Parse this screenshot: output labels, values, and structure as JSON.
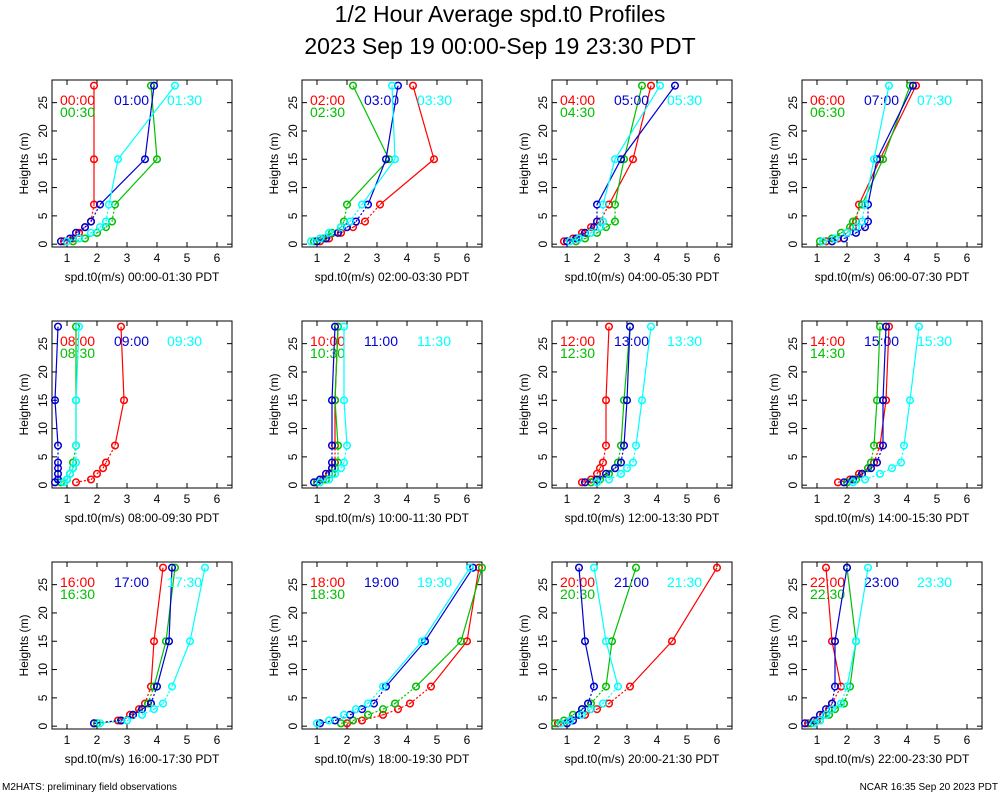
{
  "title_line1": "1/2 Hour Average spd.t0 Profiles",
  "title_line2": "2023 Sep 19 00:00-Sep 19 23:30 PDT",
  "footer_left": "M2HATS: preliminary field observations",
  "footer_right": "NCAR 16:35 Sep 20 2023 PDT",
  "colors": {
    "first": "#ff0000",
    "second": "#00c000",
    "third": "#0000d0",
    "fourth": "#00ffff"
  },
  "chart_data": [
    {
      "type": "line",
      "ylabel": "Heights (m)",
      "xlabel": "spd.t0(m/s) 00:00-01:30 PDT",
      "xlim": [
        0.5,
        6.5
      ],
      "ylim": [
        -0.5,
        29
      ],
      "xticks": [
        1,
        2,
        3,
        4,
        5,
        6
      ],
      "yticks": [
        0,
        5,
        10,
        15,
        20,
        25
      ],
      "heights": [
        0.5,
        1,
        2,
        3,
        4,
        7,
        15,
        28
      ],
      "series": [
        {
          "name": "00:00",
          "values": [
            0.9,
            1.2,
            1.4,
            1.6,
            1.8,
            1.9,
            1.9,
            1.9
          ]
        },
        {
          "name": "00:30",
          "values": [
            1.2,
            1.6,
            2.0,
            2.3,
            2.5,
            2.6,
            4.0,
            3.8
          ]
        },
        {
          "name": "01:00",
          "values": [
            0.8,
            1.1,
            1.3,
            1.6,
            1.8,
            2.1,
            3.6,
            3.9
          ]
        },
        {
          "name": "01:30",
          "values": [
            1.0,
            1.4,
            1.8,
            2.1,
            2.3,
            2.4,
            2.7,
            4.6
          ]
        }
      ]
    },
    {
      "type": "line",
      "ylabel": "Heights (m)",
      "xlabel": "spd.t0(m/s) 02:00-03:30 PDT",
      "xlim": [
        0.5,
        6.5
      ],
      "ylim": [
        -0.5,
        29
      ],
      "xticks": [
        1,
        2,
        3,
        4,
        5,
        6
      ],
      "yticks": [
        0,
        5,
        10,
        15,
        20,
        25
      ],
      "heights": [
        0.5,
        1,
        2,
        3,
        4,
        7,
        15,
        28
      ],
      "series": [
        {
          "name": "02:00",
          "values": [
            1.1,
            1.4,
            1.8,
            2.2,
            2.6,
            3.1,
            4.9,
            4.2
          ]
        },
        {
          "name": "02:30",
          "values": [
            0.9,
            1.2,
            1.5,
            1.8,
            1.9,
            2.0,
            3.4,
            2.2
          ]
        },
        {
          "name": "03:00",
          "values": [
            1.0,
            1.3,
            1.7,
            2.0,
            2.3,
            2.7,
            3.3,
            3.7
          ]
        },
        {
          "name": "03:30",
          "values": [
            0.8,
            1.1,
            1.4,
            1.8,
            2.1,
            2.5,
            3.6,
            3.5
          ]
        }
      ]
    },
    {
      "type": "line",
      "ylabel": "Heights (m)",
      "xlabel": "spd.t0(m/s) 04:00-05:30 PDT",
      "xlim": [
        0.5,
        6.5
      ],
      "ylim": [
        -0.5,
        29
      ],
      "xticks": [
        1,
        2,
        3,
        4,
        5,
        6
      ],
      "yticks": [
        0,
        5,
        10,
        15,
        20,
        25
      ],
      "heights": [
        0.5,
        1,
        2,
        3,
        4,
        7,
        15,
        28
      ],
      "series": [
        {
          "name": "04:00",
          "values": [
            0.9,
            1.2,
            1.5,
            1.8,
            2.1,
            2.4,
            3.2,
            3.8
          ]
        },
        {
          "name": "04:30",
          "values": [
            1.3,
            1.6,
            2.0,
            2.3,
            2.6,
            2.6,
            2.9,
            3.5
          ]
        },
        {
          "name": "05:00",
          "values": [
            1.0,
            1.3,
            1.6,
            1.9,
            2.0,
            2.0,
            2.8,
            4.6
          ]
        },
        {
          "name": "05:30",
          "values": [
            1.1,
            1.4,
            1.8,
            2.1,
            2.2,
            2.2,
            2.6,
            4.1
          ]
        }
      ]
    },
    {
      "type": "line",
      "ylabel": "Heights (m)",
      "xlabel": "spd.t0(m/s) 06:00-07:30 PDT",
      "xlim": [
        0.5,
        6.5
      ],
      "ylim": [
        -0.5,
        29
      ],
      "xticks": [
        1,
        2,
        3,
        4,
        5,
        6
      ],
      "yticks": [
        0,
        5,
        10,
        15,
        20,
        25
      ],
      "heights": [
        0.5,
        1,
        2,
        3,
        4,
        7,
        15,
        28
      ],
      "series": [
        {
          "name": "06:00",
          "values": [
            1.3,
            1.7,
            2.0,
            2.2,
            2.3,
            2.4,
            3.1,
            4.3
          ]
        },
        {
          "name": "06:30",
          "values": [
            1.1,
            1.5,
            1.8,
            2.1,
            2.2,
            2.5,
            3.2,
            4.1
          ]
        },
        {
          "name": "07:00",
          "values": [
            1.5,
            1.9,
            2.3,
            2.6,
            2.7,
            2.7,
            3.0,
            4.2
          ]
        },
        {
          "name": "07:30",
          "values": [
            1.2,
            1.6,
            2.0,
            2.3,
            2.5,
            2.6,
            2.9,
            3.4
          ]
        }
      ]
    },
    {
      "type": "line",
      "ylabel": "Heights (m)",
      "xlabel": "spd.t0(m/s) 08:00-09:30 PDT",
      "xlim": [
        0.5,
        6.5
      ],
      "ylim": [
        -0.5,
        29
      ],
      "xticks": [
        1,
        2,
        3,
        4,
        5,
        6
      ],
      "yticks": [
        0,
        5,
        10,
        15,
        20,
        25
      ],
      "heights": [
        0.5,
        1,
        2,
        3,
        4,
        7,
        15,
        28
      ],
      "series": [
        {
          "name": "08:00",
          "values": [
            1.3,
            1.8,
            2.0,
            2.2,
            2.3,
            2.6,
            2.9,
            2.8
          ]
        },
        {
          "name": "08:30",
          "values": [
            0.8,
            1.0,
            1.1,
            1.2,
            1.2,
            1.3,
            1.3,
            1.3
          ]
        },
        {
          "name": "09:00",
          "values": [
            0.6,
            0.7,
            0.7,
            0.7,
            0.7,
            0.7,
            0.6,
            0.7
          ]
        },
        {
          "name": "09:30",
          "values": [
            0.9,
            1.0,
            1.1,
            1.2,
            1.3,
            1.3,
            1.3,
            1.4
          ]
        }
      ]
    },
    {
      "type": "line",
      "ylabel": "Heights (m)",
      "xlabel": "spd.t0(m/s) 10:00-11:30 PDT",
      "xlim": [
        0.5,
        6.5
      ],
      "ylim": [
        -0.5,
        29
      ],
      "xticks": [
        1,
        2,
        3,
        4,
        5,
        6
      ],
      "yticks": [
        0,
        5,
        10,
        15,
        20,
        25
      ],
      "heights": [
        0.5,
        1,
        2,
        3,
        4,
        7,
        15,
        28
      ],
      "series": [
        {
          "name": "10:00",
          "values": [
            1.0,
            1.2,
            1.4,
            1.5,
            1.6,
            1.6,
            1.6,
            1.7
          ]
        },
        {
          "name": "10:30",
          "values": [
            1.0,
            1.3,
            1.5,
            1.6,
            1.7,
            1.7,
            1.6,
            1.7
          ]
        },
        {
          "name": "11:00",
          "values": [
            0.9,
            1.1,
            1.3,
            1.5,
            1.5,
            1.5,
            1.5,
            1.6
          ]
        },
        {
          "name": "11:30",
          "values": [
            1.1,
            1.4,
            1.6,
            1.8,
            1.9,
            2.0,
            1.9,
            1.9
          ]
        }
      ]
    },
    {
      "type": "line",
      "ylabel": "Heights (m)",
      "xlabel": "spd.t0(m/s) 12:00-13:30 PDT",
      "xlim": [
        0.5,
        6.5
      ],
      "ylim": [
        -0.5,
        29
      ],
      "xticks": [
        1,
        2,
        3,
        4,
        5,
        6
      ],
      "yticks": [
        0,
        5,
        10,
        15,
        20,
        25
      ],
      "heights": [
        0.5,
        1,
        2,
        3,
        4,
        7,
        15,
        28
      ],
      "series": [
        {
          "name": "12:00",
          "values": [
            1.5,
            1.8,
            2.0,
            2.1,
            2.2,
            2.3,
            2.3,
            2.4
          ]
        },
        {
          "name": "12:30",
          "values": [
            1.8,
            2.1,
            2.4,
            2.6,
            2.7,
            2.8,
            2.9,
            3.1
          ]
        },
        {
          "name": "13:00",
          "values": [
            1.6,
            2.0,
            2.3,
            2.6,
            2.8,
            2.9,
            3.0,
            3.1
          ]
        },
        {
          "name": "13:30",
          "values": [
            2.0,
            2.4,
            2.8,
            3.0,
            3.2,
            3.3,
            3.5,
            3.8
          ]
        }
      ]
    },
    {
      "type": "line",
      "ylabel": "Heights (m)",
      "xlabel": "spd.t0(m/s) 14:00-15:30 PDT",
      "xlim": [
        0.5,
        6.5
      ],
      "ylim": [
        -0.5,
        29
      ],
      "xticks": [
        1,
        2,
        3,
        4,
        5,
        6
      ],
      "yticks": [
        0,
        5,
        10,
        15,
        20,
        25
      ],
      "heights": [
        0.5,
        1,
        2,
        3,
        4,
        7,
        15,
        28
      ],
      "series": [
        {
          "name": "14:00",
          "values": [
            1.7,
            2.1,
            2.4,
            2.7,
            2.9,
            3.1,
            3.3,
            3.4
          ]
        },
        {
          "name": "14:30",
          "values": [
            2.0,
            2.3,
            2.5,
            2.7,
            2.8,
            2.9,
            3.0,
            3.1
          ]
        },
        {
          "name": "15:00",
          "values": [
            1.9,
            2.2,
            2.5,
            2.8,
            3.0,
            3.2,
            3.2,
            3.3
          ]
        },
        {
          "name": "15:30",
          "values": [
            2.2,
            2.6,
            3.1,
            3.5,
            3.8,
            3.9,
            4.1,
            4.4
          ]
        }
      ]
    },
    {
      "type": "line",
      "ylabel": "Heights (m)",
      "xlabel": "spd.t0(m/s) 16:00-17:30 PDT",
      "xlim": [
        0.5,
        6.5
      ],
      "ylim": [
        -0.5,
        29
      ],
      "xticks": [
        1,
        2,
        3,
        4,
        5,
        6
      ],
      "yticks": [
        0,
        5,
        10,
        15,
        20,
        25
      ],
      "heights": [
        0.5,
        1,
        2,
        3,
        4,
        7,
        15,
        28
      ],
      "series": [
        {
          "name": "16:00",
          "values": [
            1.9,
            2.7,
            3.1,
            3.4,
            3.6,
            3.8,
            3.9,
            4.2
          ]
        },
        {
          "name": "16:30",
          "values": [
            2.0,
            2.8,
            3.2,
            3.5,
            3.7,
            3.9,
            4.3,
            4.6
          ]
        },
        {
          "name": "17:00",
          "values": [
            1.9,
            2.8,
            3.2,
            3.5,
            3.8,
            4.0,
            4.4,
            4.5
          ]
        },
        {
          "name": "17:30",
          "values": [
            2.1,
            3.0,
            3.5,
            3.9,
            4.2,
            4.5,
            5.1,
            5.6
          ]
        }
      ]
    },
    {
      "type": "line",
      "ylabel": "Heights (m)",
      "xlabel": "spd.t0(m/s) 18:00-19:30 PDT",
      "xlim": [
        0.5,
        6.5
      ],
      "ylim": [
        -0.5,
        29
      ],
      "xticks": [
        1,
        2,
        3,
        4,
        5,
        6
      ],
      "yticks": [
        0,
        5,
        10,
        15,
        20,
        25
      ],
      "heights": [
        0.5,
        1,
        2,
        3,
        4,
        7,
        15,
        28
      ],
      "series": [
        {
          "name": "18:00",
          "values": [
            2.0,
            2.5,
            3.2,
            3.7,
            4.1,
            4.8,
            6.0,
            6.4
          ]
        },
        {
          "name": "18:30",
          "values": [
            1.8,
            2.2,
            2.7,
            3.2,
            3.6,
            4.3,
            5.8,
            6.5
          ]
        },
        {
          "name": "19:00",
          "values": [
            1.1,
            1.6,
            2.1,
            2.5,
            2.9,
            3.3,
            4.6,
            6.2
          ]
        },
        {
          "name": "19:30",
          "values": [
            1.0,
            1.4,
            1.9,
            2.3,
            2.7,
            3.2,
            4.5,
            6.1
          ]
        }
      ]
    },
    {
      "type": "line",
      "ylabel": "Heights (m)",
      "xlabel": "spd.t0(m/s) 20:00-21:30 PDT",
      "xlim": [
        0.5,
        6.5
      ],
      "ylim": [
        -0.5,
        29
      ],
      "xticks": [
        1,
        2,
        3,
        4,
        5,
        6
      ],
      "yticks": [
        0,
        5,
        10,
        15,
        20,
        25
      ],
      "heights": [
        0.5,
        1,
        2,
        3,
        4,
        7,
        15,
        28
      ],
      "series": [
        {
          "name": "20:00",
          "values": [
            0.7,
            1.1,
            1.6,
            2.0,
            2.4,
            3.1,
            4.5,
            6.0
          ]
        },
        {
          "name": "20:30",
          "values": [
            0.6,
            0.9,
            1.2,
            1.5,
            1.8,
            2.3,
            2.5,
            3.3
          ]
        },
        {
          "name": "21:00",
          "values": [
            1.0,
            1.2,
            1.4,
            1.5,
            1.7,
            1.9,
            1.6,
            1.4
          ]
        },
        {
          "name": "21:30",
          "values": [
            0.8,
            1.1,
            1.5,
            1.8,
            2.2,
            2.7,
            2.3,
            1.9
          ]
        }
      ]
    },
    {
      "type": "line",
      "ylabel": "Heights (m)",
      "xlabel": "spd.t0(m/s) 22:00-23:30 PDT",
      "xlim": [
        0.5,
        6.5
      ],
      "ylim": [
        -0.5,
        29
      ],
      "xticks": [
        1,
        2,
        3,
        4,
        5,
        6
      ],
      "yticks": [
        0,
        5,
        10,
        15,
        20,
        25
      ],
      "heights": [
        0.5,
        1,
        2,
        3,
        4,
        7,
        15,
        28
      ],
      "series": [
        {
          "name": "22:00",
          "values": [
            0.7,
            1.0,
            1.2,
            1.4,
            1.5,
            1.8,
            1.5,
            1.3
          ]
        },
        {
          "name": "22:30",
          "values": [
            0.8,
            1.1,
            1.4,
            1.6,
            1.9,
            2.1,
            2.3,
            2.0
          ]
        },
        {
          "name": "23:00",
          "values": [
            0.6,
            0.9,
            1.1,
            1.3,
            1.5,
            1.6,
            1.6,
            2.0
          ]
        },
        {
          "name": "23:30",
          "values": [
            0.9,
            1.1,
            1.3,
            1.5,
            1.8,
            2.0,
            2.3,
            2.7
          ]
        }
      ]
    }
  ]
}
